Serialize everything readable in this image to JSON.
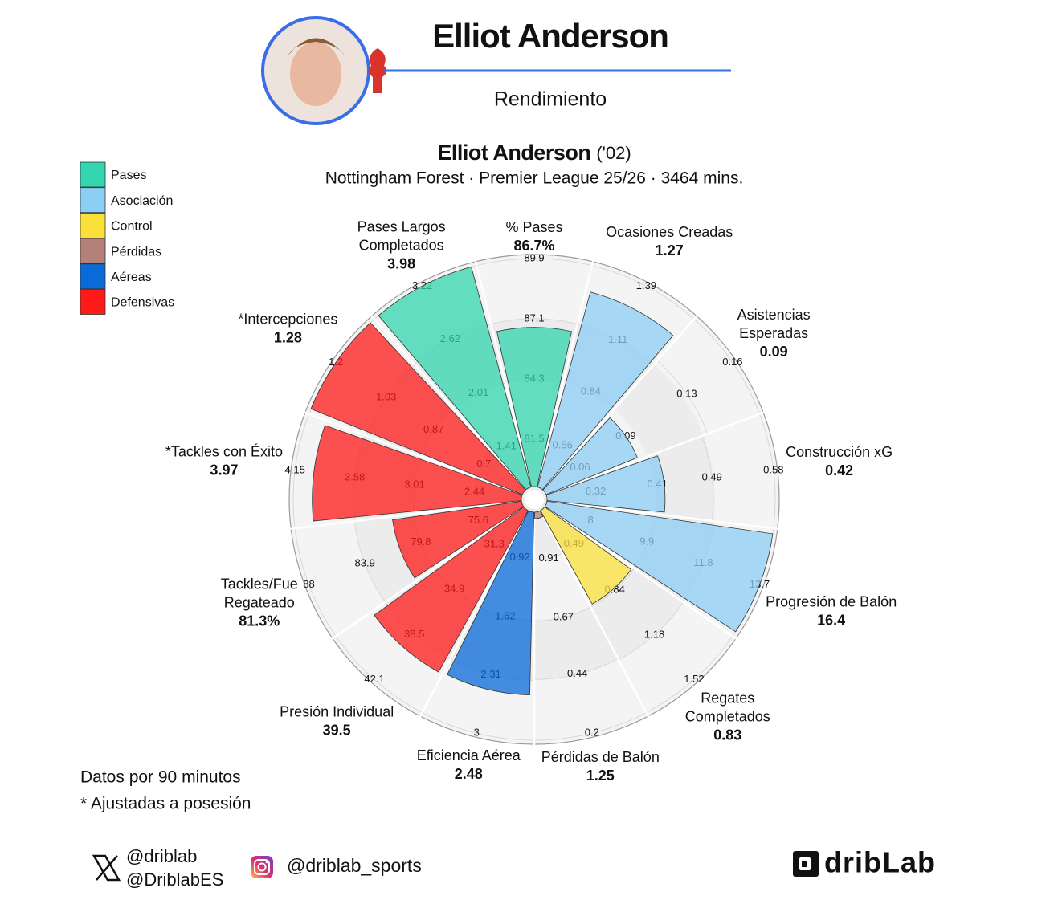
{
  "header": {
    "title": "Elliot Anderson",
    "subtitle": "Rendimiento"
  },
  "chart_data": {
    "type": "pizza",
    "title": "Elliot Anderson",
    "title_note": "('02)",
    "subtitle": "Nottingham Forest · Premier League 25/26 · 3464 mins.",
    "legend": [
      {
        "name": "Pases",
        "color": "#33d6ae"
      },
      {
        "name": "Asociación",
        "color": "#8ccff5"
      },
      {
        "name": "Control",
        "color": "#fbe03a"
      },
      {
        "name": "Pérdidas",
        "color": "#b3807a"
      },
      {
        "name": "Aéreas",
        "color": "#0a6ad8"
      },
      {
        "name": "Defensivas",
        "color": "#ff1a1a"
      }
    ],
    "slices": [
      {
        "name": [
          "% Pases"
        ],
        "color": "#33d6ae",
        "value": 86.7,
        "value_label": "86.7%",
        "ticks": [
          81.5,
          84.3,
          87.1,
          89.9
        ],
        "rlim": [
          78.7,
          89.9
        ]
      },
      {
        "name": [
          "Ocasiones Creadas"
        ],
        "color": "#8ccff5",
        "value": 1.27,
        "ticks": [
          0.56,
          0.84,
          1.11,
          1.39
        ],
        "rlim": [
          0.28,
          1.39
        ]
      },
      {
        "name": [
          "Asistencias",
          "Esperadas"
        ],
        "color": "#8ccff5",
        "value": 0.09,
        "ticks": [
          0.06,
          0.09,
          0.13,
          0.16
        ],
        "rlim": [
          0.03,
          0.16
        ]
      },
      {
        "name": [
          "Construcción xG"
        ],
        "color": "#8ccff5",
        "value": 0.42,
        "ticks": [
          0.32,
          0.41,
          0.49,
          0.58
        ],
        "rlim": [
          0.23,
          0.58
        ]
      },
      {
        "name": [
          "Progresión de Balón"
        ],
        "color": "#8ccff5",
        "value": 16.4,
        "ticks": [
          8,
          9.9,
          11.8,
          13.7
        ],
        "rlim": [
          6.1,
          13.7
        ]
      },
      {
        "name": [
          "Regates",
          "Completados"
        ],
        "color": "#fbe03a",
        "value": 0.83,
        "ticks": [
          0.49,
          0.84,
          1.18,
          1.52
        ],
        "rlim": [
          0.15,
          1.52
        ]
      },
      {
        "name": [
          "Pérdidas de Balón"
        ],
        "color": "#b3807a",
        "value": 1.25,
        "ticks": [
          0.91,
          0.67,
          0.44,
          0.2
        ],
        "rlim": [
          1.15,
          0.2
        ]
      },
      {
        "name": [
          "Eficiencia Aérea"
        ],
        "color": "#0a6ad8",
        "value": 2.48,
        "ticks": [
          0.92,
          1.62,
          2.31,
          3
        ],
        "rlim": [
          0.23,
          3
        ]
      },
      {
        "name": [
          "Presión Individual"
        ],
        "color": "#ff1a1a",
        "value": 39.5,
        "ticks": [
          31.3,
          34.9,
          38.5,
          42.1
        ],
        "rlim": [
          27.7,
          42.1
        ]
      },
      {
        "name": [
          "Tackles/Fue",
          "Regateado"
        ],
        "color": "#ff1a1a",
        "value": 81.3,
        "value_label": "81.3%",
        "ticks": [
          75.6,
          79.8,
          83.9,
          88
        ],
        "rlim": [
          71.5,
          88
        ]
      },
      {
        "name": [
          "*Tackles con Éxito"
        ],
        "color": "#ff1a1a",
        "value": 3.97,
        "ticks": [
          2.44,
          3.01,
          3.58,
          4.15
        ],
        "rlim": [
          1.87,
          4.15
        ]
      },
      {
        "name": [
          "*Intercepciones"
        ],
        "color": "#ff1a1a",
        "value": 1.28,
        "ticks": [
          0.7,
          0.87,
          1.03,
          1.2
        ],
        "rlim": [
          0.53,
          1.2
        ]
      },
      {
        "name": [
          "Pases Largos",
          "Completados"
        ],
        "color": "#33d6ae",
        "value": 3.98,
        "ticks": [
          1.41,
          2.01,
          2.62,
          3.22
        ],
        "rlim": [
          0.81,
          3.22
        ]
      }
    ]
  },
  "notes": [
    "Datos por 90 minutos",
    "* Ajustadas a posesión"
  ],
  "social": {
    "x_handles": [
      "@driblab",
      "@DriblabES"
    ],
    "instagram": "@driblab_sports"
  },
  "brand": "dribLab"
}
